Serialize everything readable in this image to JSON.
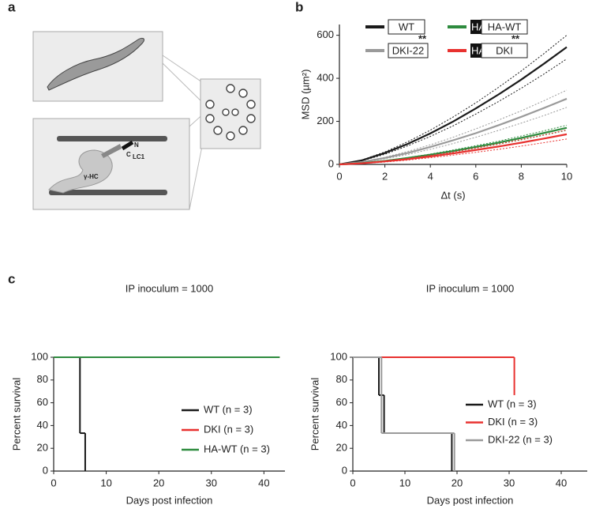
{
  "panel_labels": [
    "a",
    "b",
    "c"
  ],
  "diagram": {
    "labels": [
      "N",
      "C",
      "LC1",
      "γ-HC"
    ]
  },
  "chart_data": [
    {
      "type": "line",
      "x": [
        0,
        1,
        2,
        3,
        4,
        5,
        6,
        7,
        8,
        9,
        10
      ],
      "xlim": [
        0,
        10
      ],
      "xticks": [
        0,
        2,
        4,
        6,
        8,
        10
      ],
      "ylim": [
        0,
        650
      ],
      "yticks": [
        0,
        200,
        400,
        600
      ],
      "x_label": "Δt (s)",
      "y_label": "MSD (µm²)",
      "annotations": [
        "**",
        "**"
      ],
      "series": [
        {
          "name": "WT",
          "color": "#1a1a1a",
          "values": [
            0,
            19,
            53,
            95,
            144,
            199,
            260,
            325,
            394,
            468,
            545
          ],
          "upper": [
            0,
            21,
            58,
            105,
            159,
            220,
            286,
            358,
            434,
            515,
            600
          ],
          "lower": [
            0,
            17,
            47,
            86,
            130,
            179,
            234,
            292,
            354,
            420,
            490
          ]
        },
        {
          "name": "DKI-22",
          "color": "#9a9a9a",
          "values": [
            0,
            11,
            30,
            53,
            81,
            112,
            145,
            182,
            221,
            262,
            305
          ],
          "upper": [
            0,
            12,
            33,
            60,
            91,
            126,
            165,
            206,
            249,
            296,
            345
          ],
          "lower": [
            0,
            9,
            26,
            46,
            70,
            97,
            126,
            158,
            192,
            227,
            265
          ]
        },
        {
          "name": "HA-WT",
          "tag": "HA",
          "color": "#2e8b3e",
          "values": [
            0,
            6,
            16,
            30,
            45,
            62,
            81,
            101,
            123,
            146,
            170
          ],
          "upper": [
            0,
            6,
            18,
            32,
            48,
            67,
            87,
            108,
            132,
            156,
            182
          ],
          "lower": [
            0,
            6,
            15,
            28,
            42,
            58,
            75,
            94,
            114,
            136,
            158
          ]
        },
        {
          "name": "DKI",
          "tag": "HA",
          "color": "#e8312f",
          "values": [
            0,
            5,
            14,
            24,
            37,
            51,
            67,
            83,
            101,
            120,
            140
          ],
          "upper": [
            0,
            6,
            16,
            28,
            42,
            58,
            76,
            95,
            116,
            137,
            160
          ],
          "lower": [
            0,
            4,
            11,
            20,
            31,
            43,
            56,
            70,
            85,
            101,
            118
          ]
        }
      ]
    },
    {
      "type": "step",
      "title": "IP inoculum = 1000",
      "x_label": "Days post infection",
      "y_label": "Percent survival",
      "xlim": [
        0,
        44
      ],
      "xticks": [
        0,
        10,
        20,
        30,
        40
      ],
      "ylim": [
        0,
        100
      ],
      "yticks": [
        0,
        20,
        40,
        60,
        80,
        100
      ],
      "legend": "bottom-right",
      "series": [
        {
          "name": "WT (n = 3)",
          "color": "#1a1a1a",
          "x": [
            0,
            5,
            6
          ],
          "values": [
            100,
            33.3,
            0
          ]
        },
        {
          "name": "DKI (n = 3)",
          "color": "#e8312f",
          "x": [
            0,
            43
          ],
          "values": [
            100,
            100
          ]
        },
        {
          "name": "HA-WT (n = 3)",
          "color": "#2e8b3e",
          "x": [
            0,
            43
          ],
          "values": [
            100,
            100
          ]
        }
      ]
    },
    {
      "type": "step",
      "title": "IP inoculum = 1000",
      "x_label": "Days post infection",
      "y_label": "Percent survival",
      "xlim": [
        0,
        45
      ],
      "xticks": [
        0,
        10,
        20,
        30,
        40
      ],
      "ylim": [
        0,
        100
      ],
      "yticks": [
        0,
        20,
        40,
        60,
        80,
        100
      ],
      "legend": "bottom-right",
      "series": [
        {
          "name": "WT (n = 3)",
          "color": "#1a1a1a",
          "x": [
            0,
            5,
            6,
            19
          ],
          "values": [
            100,
            66.7,
            33.3,
            0
          ]
        },
        {
          "name": "DKI (n = 3)",
          "color": "#e8312f",
          "x": [
            0,
            31
          ],
          "values": [
            100,
            66.7
          ]
        },
        {
          "name": "DKI-22 (n = 3)",
          "color": "#9a9a9a",
          "x": [
            0,
            5.5,
            19.5
          ],
          "values": [
            100,
            33.3,
            0
          ]
        }
      ]
    }
  ]
}
